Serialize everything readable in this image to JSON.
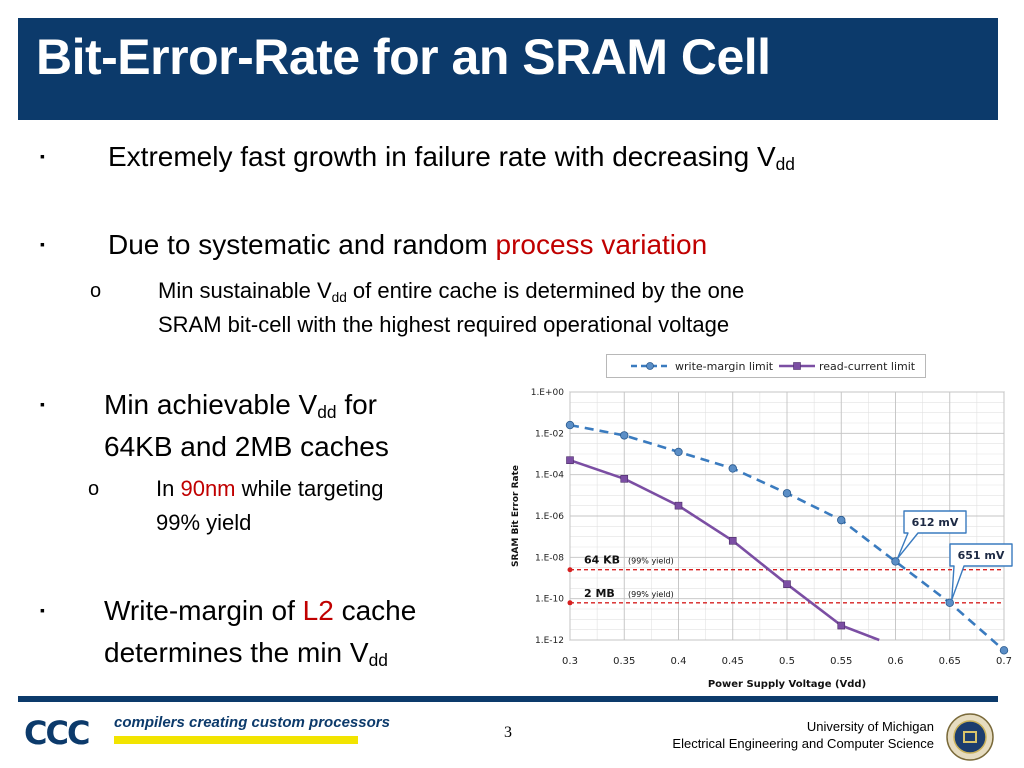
{
  "slide": {
    "title": "Bit-Error-Rate for an SRAM Cell",
    "bullets": {
      "b1": {
        "marker": "▪",
        "text": "Extremely fast growth in failure rate with decreasing V",
        "sub": "dd"
      },
      "b2": {
        "marker": "▪",
        "text": "Due to systematic and random ",
        "highlight": "process variation",
        "sub_bullet": {
          "marker": "o",
          "line1_pre": "Min sustainable V",
          "line1_sub": "dd",
          "line1_post": " of entire cache is determined by the one",
          "line2": "SRAM bit-cell with the highest required operational voltage"
        }
      },
      "b3": {
        "marker": "▪",
        "line1_pre": "Min achievable V",
        "line1_sub": "dd",
        "line1_post": " for",
        "line2": "64KB and 2MB caches",
        "sub_bullet": {
          "marker": "o",
          "pre": "In ",
          "highlight": "90nm",
          "post": " while targeting",
          "line2": "99% yield"
        }
      },
      "b4": {
        "marker": "▪",
        "line1_pre": "Write-margin of ",
        "highlight": "L2",
        "line1_post": " cache",
        "line2_pre": "determines the min V",
        "line2_sub": "dd"
      }
    },
    "colors": {
      "title_bg": "#0c3a6b",
      "accent_red": "#c00000",
      "series_wm": "#3a7bbf",
      "series_rc": "#7b4ea3",
      "ref_line": "#d62020"
    }
  },
  "chart_data": {
    "type": "line",
    "xlabel": "Power Supply Voltage (Vdd)",
    "ylabel": "SRAM Bit Error Rate",
    "x": [
      0.3,
      0.35,
      0.4,
      0.45,
      0.5,
      0.55,
      0.6,
      0.65,
      0.7
    ],
    "x_tick_labels": [
      "0.3",
      "0.35",
      "0.4",
      "0.45",
      "0.5",
      "0.55",
      "0.6",
      "0.65",
      "0.7"
    ],
    "y_tick_labels": [
      "1.E+00",
      "1.E-02",
      "1.E-04",
      "1.E-06",
      "1.E-08",
      "1.E-10",
      "1.E-12"
    ],
    "y_scale": "log10",
    "ylim_exp": [
      -12,
      0
    ],
    "grid": true,
    "legend_position": "top",
    "series": [
      {
        "name": "write-margin limit",
        "style": "dashed",
        "marker": "circle",
        "x": [
          0.3,
          0.35,
          0.4,
          0.45,
          0.5,
          0.55,
          0.6,
          0.65,
          0.7
        ],
        "log10_y": [
          -1.6,
          -2.1,
          -2.9,
          -3.7,
          -4.9,
          -6.2,
          -8.2,
          -10.2,
          -12.5
        ]
      },
      {
        "name": "read-current limit",
        "style": "solid",
        "marker": "square",
        "x": [
          0.3,
          0.35,
          0.4,
          0.45,
          0.5,
          0.55,
          0.585
        ],
        "log10_y": [
          -3.3,
          -4.2,
          -5.5,
          -7.2,
          -9.3,
          -11.3,
          -12.0
        ]
      }
    ],
    "reference_lines": [
      {
        "label": "64 KB",
        "note": "(99% yield)",
        "log10_y": -8.6
      },
      {
        "label": "2 MB",
        "note": "(99% yield)",
        "log10_y": -10.2
      }
    ],
    "callouts": [
      {
        "text": "612 mV",
        "x": 0.6,
        "log10_y": -8.2
      },
      {
        "text": "651 mV",
        "x": 0.65,
        "log10_y": -10.2
      }
    ]
  },
  "footer": {
    "logo": "CCC",
    "tagline": "compilers creating custom processors",
    "page_number": "3",
    "university": "University of Michigan",
    "department": "Electrical Engineering and Computer Science"
  }
}
